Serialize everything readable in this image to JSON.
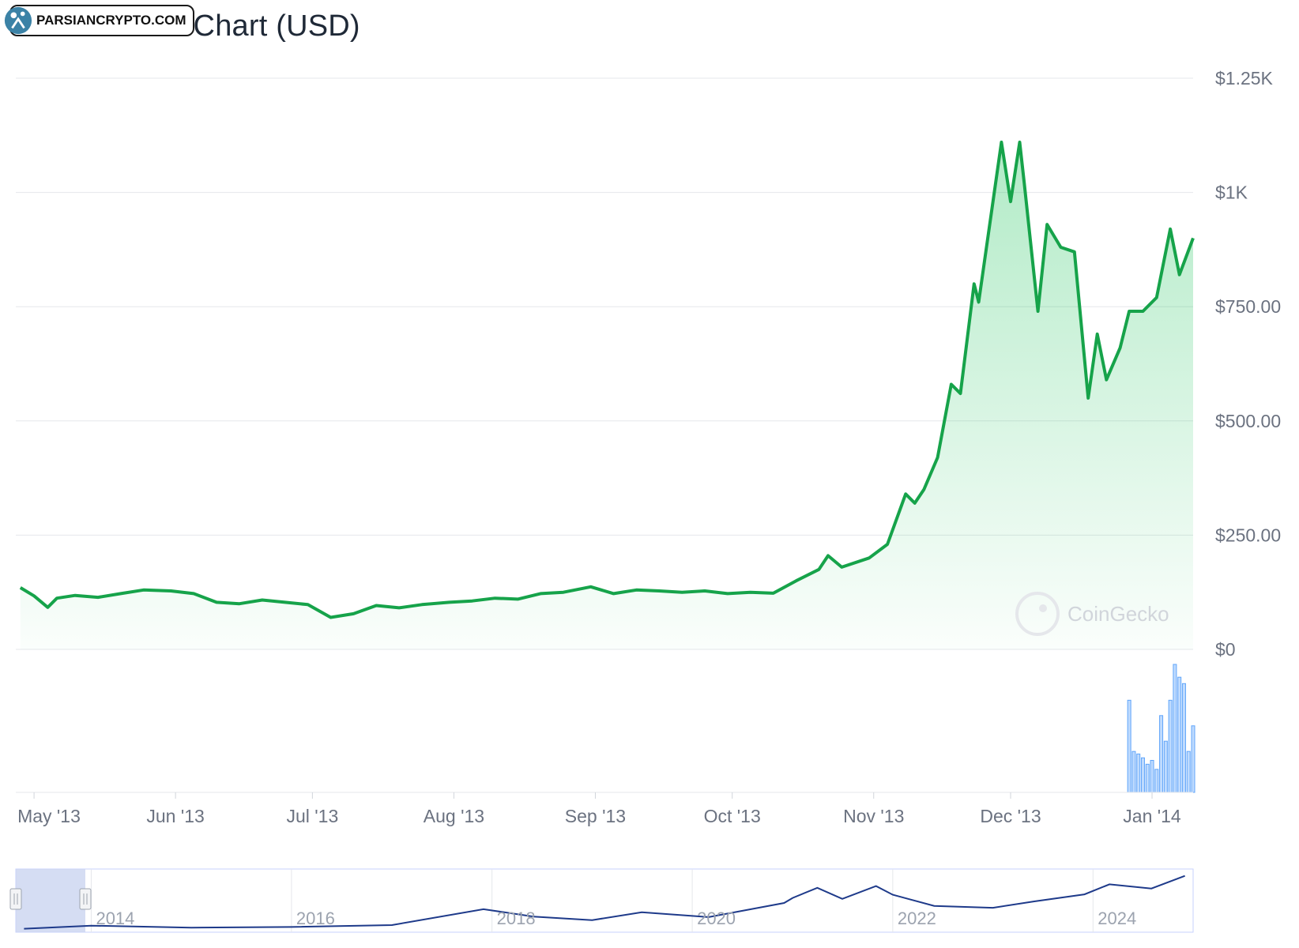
{
  "header": {
    "title": "Bitcoin Price Chart (USD)"
  },
  "watermark": {
    "text": "PARSIANCRYPTO.COM"
  },
  "brand": {
    "text": "CoinGecko",
    "icon": "gecko-icon"
  },
  "colors": {
    "line": "#16a34a",
    "fill": "#22c55e",
    "volume": "#60a5fa",
    "navigator": "#1e3a8a"
  },
  "chart_data": {
    "type": "area",
    "title": "Bitcoin Price Chart (USD)",
    "y_unit": "USD",
    "ylim": [
      0,
      1250
    ],
    "yticks": [
      "$0",
      "$250.00",
      "$500.00",
      "$750.00",
      "$1K",
      "$1.25K"
    ],
    "xticks": [
      "May '13",
      "Jun '13",
      "Jul '13",
      "Aug '13",
      "Sep '13",
      "Oct '13",
      "Nov '13",
      "Dec '13",
      "Jan '14"
    ],
    "grid": true,
    "series": [
      {
        "values": [
          [
            "2013-04-28",
            135
          ],
          [
            "2013-05-01",
            117
          ],
          [
            "2013-05-04",
            92
          ],
          [
            "2013-05-06",
            112
          ],
          [
            "2013-05-10",
            118
          ],
          [
            "2013-05-15",
            114
          ],
          [
            "2013-05-20",
            122
          ],
          [
            "2013-05-25",
            130
          ],
          [
            "2013-05-31",
            128
          ],
          [
            "2013-06-05",
            122
          ],
          [
            "2013-06-10",
            103
          ],
          [
            "2013-06-15",
            100
          ],
          [
            "2013-06-20",
            108
          ],
          [
            "2013-06-25",
            103
          ],
          [
            "2013-06-30",
            98
          ],
          [
            "2013-07-05",
            70
          ],
          [
            "2013-07-10",
            78
          ],
          [
            "2013-07-15",
            96
          ],
          [
            "2013-07-20",
            91
          ],
          [
            "2013-07-25",
            98
          ],
          [
            "2013-07-31",
            103
          ],
          [
            "2013-08-05",
            106
          ],
          [
            "2013-08-10",
            112
          ],
          [
            "2013-08-15",
            110
          ],
          [
            "2013-08-20",
            122
          ],
          [
            "2013-08-25",
            125
          ],
          [
            "2013-08-31",
            137
          ],
          [
            "2013-09-05",
            122
          ],
          [
            "2013-09-10",
            130
          ],
          [
            "2013-09-15",
            128
          ],
          [
            "2013-09-20",
            125
          ],
          [
            "2013-09-25",
            128
          ],
          [
            "2013-09-30",
            122
          ],
          [
            "2013-10-05",
            125
          ],
          [
            "2013-10-10",
            123
          ],
          [
            "2013-10-15",
            150
          ],
          [
            "2013-10-20",
            175
          ],
          [
            "2013-10-22",
            205
          ],
          [
            "2013-10-25",
            180
          ],
          [
            "2013-10-31",
            200
          ],
          [
            "2013-11-04",
            230
          ],
          [
            "2013-11-08",
            340
          ],
          [
            "2013-11-10",
            320
          ],
          [
            "2013-11-12",
            350
          ],
          [
            "2013-11-15",
            420
          ],
          [
            "2013-11-18",
            580
          ],
          [
            "2013-11-20",
            560
          ],
          [
            "2013-11-23",
            800
          ],
          [
            "2013-11-24",
            760
          ],
          [
            "2013-11-29",
            1110
          ],
          [
            "2013-12-01",
            980
          ],
          [
            "2013-12-03",
            1110
          ],
          [
            "2013-12-04",
            1020
          ],
          [
            "2013-12-07",
            740
          ],
          [
            "2013-12-09",
            930
          ],
          [
            "2013-12-12",
            880
          ],
          [
            "2013-12-15",
            870
          ],
          [
            "2013-12-18",
            550
          ],
          [
            "2013-12-20",
            690
          ],
          [
            "2013-12-22",
            590
          ],
          [
            "2013-12-25",
            660
          ],
          [
            "2013-12-27",
            740
          ],
          [
            "2013-12-30",
            740
          ],
          [
            "2014-01-02",
            770
          ],
          [
            "2014-01-05",
            920
          ],
          [
            "2014-01-07",
            820
          ],
          [
            "2014-01-10",
            900
          ]
        ]
      }
    ],
    "volume": {
      "values": [
        [
          "2013-12-27",
          0.72
        ],
        [
          "2013-12-28",
          0.32
        ],
        [
          "2013-12-29",
          0.3
        ],
        [
          "2013-12-30",
          0.27
        ],
        [
          "2013-12-31",
          0.22
        ],
        [
          "2014-01-01",
          0.25
        ],
        [
          "2014-01-02",
          0.18
        ],
        [
          "2014-01-03",
          0.6
        ],
        [
          "2014-01-04",
          0.4
        ],
        [
          "2014-01-05",
          0.72
        ],
        [
          "2014-01-06",
          1.0
        ],
        [
          "2014-01-07",
          0.9
        ],
        [
          "2014-01-08",
          0.85
        ],
        [
          "2014-01-09",
          0.32
        ],
        [
          "2014-01-10",
          0.52
        ]
      ]
    },
    "navigator": {
      "xticks": [
        "2014",
        "2016",
        "2018",
        "2020",
        "2022",
        "2024"
      ],
      "range_selected": [
        "2013-04-28",
        "2014-01-10"
      ],
      "values": [
        [
          "2013-05",
          120
        ],
        [
          "2014-01",
          800
        ],
        [
          "2015-01",
          300
        ],
        [
          "2016-01",
          430
        ],
        [
          "2017-01",
          1000
        ],
        [
          "2017-12",
          15000
        ],
        [
          "2018-06",
          6500
        ],
        [
          "2019-01",
          3600
        ],
        [
          "2019-07",
          11000
        ],
        [
          "2020-03",
          6000
        ],
        [
          "2020-12",
          25000
        ],
        [
          "2021-01",
          35000
        ],
        [
          "2021-04",
          60000
        ],
        [
          "2021-07",
          33000
        ],
        [
          "2021-11",
          65000
        ],
        [
          "2022-01",
          42000
        ],
        [
          "2022-06",
          20000
        ],
        [
          "2023-01",
          17000
        ],
        [
          "2023-06",
          28000
        ],
        [
          "2023-12",
          43000
        ],
        [
          "2024-03",
          70000
        ],
        [
          "2024-08",
          58000
        ],
        [
          "2024-12",
          98000
        ]
      ]
    }
  }
}
